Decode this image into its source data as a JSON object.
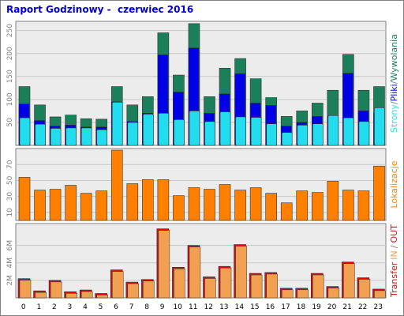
{
  "title": "Raport Godzinowy -  czerwiec 2016",
  "colors": {
    "background": "#ffffff",
    "panel": "#ececec",
    "strony": "#1a7f5a",
    "pliki": "#0000e6",
    "wywolania": "#22ddee",
    "lokalizacje": "#ff8000",
    "transfer_out": "#cc1010",
    "transfer_in": "#f0a050",
    "border": "#808080"
  },
  "chart_data": [
    {
      "type": "bar",
      "panel": "requests",
      "categories": [
        "0",
        "1",
        "2",
        "3",
        "4",
        "5",
        "6",
        "7",
        "8",
        "9",
        "10",
        "11",
        "12",
        "13",
        "14",
        "15",
        "16",
        "17",
        "18",
        "19",
        "20",
        "21",
        "22",
        "23"
      ],
      "series": [
        {
          "name": "Strony",
          "values": [
            128,
            88,
            62,
            66,
            58,
            57,
            128,
            88,
            106,
            245,
            153,
            265,
            106,
            168,
            189,
            145,
            104,
            63,
            75,
            92,
            120,
            198,
            120,
            128
          ]
        },
        {
          "name": "Pliki",
          "values": [
            90,
            54,
            42,
            44,
            40,
            40,
            95,
            52,
            70,
            197,
            116,
            212,
            70,
            112,
            156,
            92,
            87,
            42,
            50,
            63,
            64,
            157,
            75,
            70
          ]
        },
        {
          "name": "Wywolania",
          "values": [
            60,
            46,
            37,
            38,
            38,
            34,
            94,
            50,
            68,
            70,
            56,
            75,
            52,
            73,
            62,
            61,
            47,
            28,
            44,
            47,
            65,
            60,
            52,
            82
          ]
        }
      ],
      "ylim": [
        0,
        270
      ],
      "yticks": [
        "50",
        "100",
        "150",
        "200",
        "250"
      ],
      "ylabel_parts": [
        "Strony",
        "/",
        "Pliki",
        "/",
        "Wywolania"
      ]
    },
    {
      "type": "bar",
      "panel": "locations",
      "categories": [
        "0",
        "1",
        "2",
        "3",
        "4",
        "5",
        "6",
        "7",
        "8",
        "9",
        "10",
        "11",
        "12",
        "13",
        "14",
        "15",
        "16",
        "17",
        "18",
        "19",
        "20",
        "21",
        "22",
        "23"
      ],
      "series": [
        {
          "name": "Lokalizacje",
          "values": [
            54,
            38,
            39,
            44,
            34,
            37,
            88,
            46,
            51,
            51,
            31,
            41,
            39,
            45,
            38,
            41,
            34,
            22,
            37,
            35,
            49,
            38,
            37,
            68
          ]
        }
      ],
      "ylim": [
        0,
        90
      ],
      "yticks": [
        "10",
        "30",
        "50",
        "70"
      ],
      "ylabel": "Lokalizacje"
    },
    {
      "type": "bar",
      "panel": "transfer",
      "categories": [
        "0",
        "1",
        "2",
        "3",
        "4",
        "5",
        "6",
        "7",
        "8",
        "9",
        "10",
        "11",
        "12",
        "13",
        "14",
        "15",
        "16",
        "17",
        "18",
        "19",
        "20",
        "21",
        "22",
        "23"
      ],
      "series": [
        {
          "name": "Transfer",
          "values": [
            2.2,
            0.8,
            2.0,
            0.7,
            0.9,
            0.5,
            3.2,
            1.8,
            2.1,
            7.9,
            3.5,
            6.0,
            2.4,
            3.6,
            6.1,
            2.8,
            2.9,
            1.1,
            1.1,
            2.8,
            1.3,
            4.1,
            2.3,
            1.0
          ]
        }
      ],
      "ylim": [
        0,
        8.5
      ],
      "yticks": [
        "2M",
        "4M",
        "6M"
      ],
      "ylabel_parts": [
        "Transfer",
        "IN",
        "/",
        "OUT"
      ]
    }
  ]
}
